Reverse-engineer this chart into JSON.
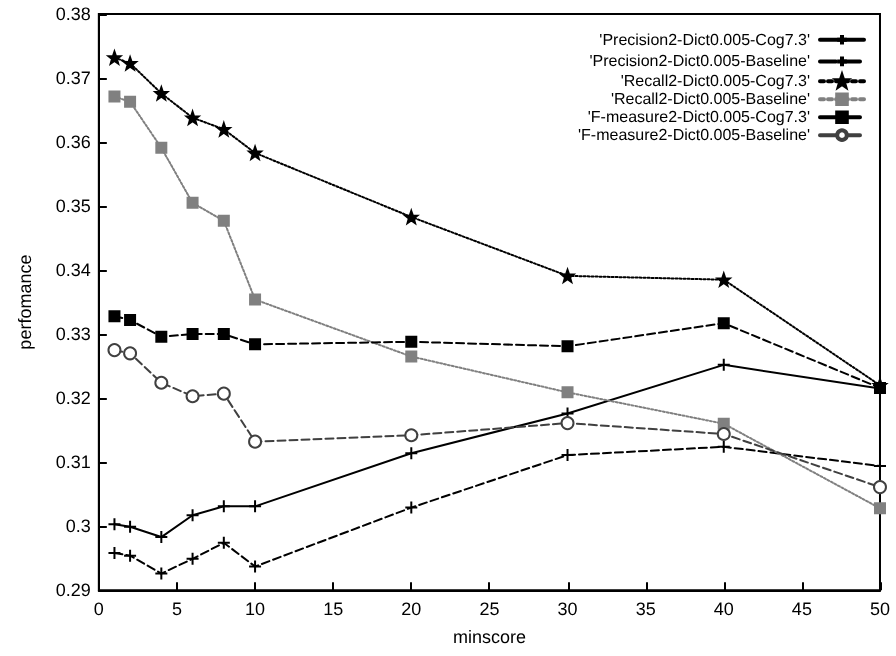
{
  "chart_data": {
    "type": "line",
    "xlabel": "minscore",
    "ylabel": "perfomance",
    "x": [
      1,
      2,
      4,
      6,
      8,
      10,
      20,
      30,
      40,
      50
    ],
    "xlim": [
      0,
      50
    ],
    "xticks": [
      0,
      5,
      10,
      15,
      20,
      25,
      30,
      35,
      40,
      45,
      50
    ],
    "ylim": [
      0.29,
      0.38
    ],
    "yticks": [
      0.29,
      0.3,
      0.31,
      0.32,
      0.33,
      0.34,
      0.35,
      0.36,
      0.37,
      0.38
    ],
    "grid": false,
    "legend": "top right",
    "series": [
      {
        "name": "'Precision2-Dict0.005-Cog7.3'",
        "color": "#000000",
        "marker": "cross",
        "line_style": "solid",
        "values": [
          0.3003,
          0.2999,
          0.2983,
          0.3017,
          0.3031,
          0.3031,
          0.3114,
          0.3176,
          0.3252,
          0.3215
        ]
      },
      {
        "name": "'Precision2-Dict0.005-Baseline'",
        "color": "#000000",
        "marker": "cross",
        "line_style": "dashed",
        "values": [
          0.2958,
          0.2954,
          0.2926,
          0.2949,
          0.2974,
          0.2937,
          0.3029,
          0.3111,
          0.3124,
          0.3094
        ]
      },
      {
        "name": "'Recall2-Dict0.005-Cog7.3'",
        "color": "#000000",
        "marker": "star",
        "line_style": "dotted",
        "values": [
          0.3732,
          0.3723,
          0.3676,
          0.3638,
          0.362,
          0.3583,
          0.3483,
          0.3391,
          0.3385,
          0.322
        ]
      },
      {
        "name": "'Recall2-Dict0.005-Baseline'",
        "color": "#808080",
        "marker": "square",
        "line_style": "dotted",
        "values": [
          0.3671,
          0.3663,
          0.3591,
          0.3505,
          0.3477,
          0.3354,
          0.3265,
          0.3209,
          0.316,
          0.3028
        ]
      },
      {
        "name": "'F-measure2-Dict0.005-Cog7.3'",
        "color": "#000000",
        "marker": "square",
        "line_style": "dashed",
        "values": [
          0.3328,
          0.3322,
          0.3296,
          0.33,
          0.33,
          0.3284,
          0.3288,
          0.3281,
          0.3317,
          0.3216
        ]
      },
      {
        "name": "'F-measure2-Dict0.005-Baseline'",
        "color": "#404040",
        "marker": "circle",
        "line_style": "dashed",
        "values": [
          0.3275,
          0.327,
          0.3224,
          0.3203,
          0.3207,
          0.3132,
          0.3142,
          0.3161,
          0.3144,
          0.3061
        ]
      }
    ]
  }
}
